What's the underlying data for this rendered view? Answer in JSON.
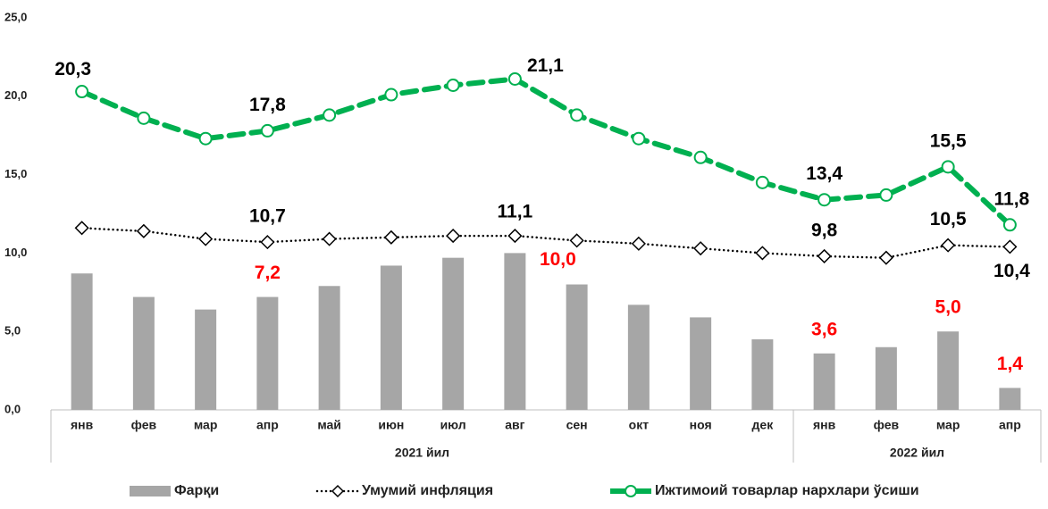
{
  "chart_data": {
    "type": "bar-line",
    "categories": [
      "янв",
      "фев",
      "мар",
      "апр",
      "май",
      "июн",
      "июл",
      "авг",
      "сен",
      "окт",
      "ноя",
      "дек",
      "янв",
      "фев",
      "мар",
      "апр"
    ],
    "groups": [
      {
        "label": "2021 йил",
        "span": 12
      },
      {
        "label": "2022 йил",
        "span": 4
      }
    ],
    "ylim": [
      0,
      25
    ],
    "yticks": [
      {
        "value": 0,
        "label": "0,0"
      },
      {
        "value": 5,
        "label": "5,0"
      },
      {
        "value": 10,
        "label": "10,0"
      },
      {
        "value": 15,
        "label": "15,0"
      },
      {
        "value": 20,
        "label": "20,0"
      },
      {
        "value": 25,
        "label": "25,0"
      }
    ],
    "grid": false,
    "legend": "bottom",
    "series": [
      {
        "name": "Фарқи",
        "kind": "bar",
        "color": "#a6a6a6",
        "label_color": "#ff0000",
        "values": [
          8.7,
          7.2,
          6.4,
          7.2,
          7.9,
          9.2,
          9.7,
          10.0,
          8.0,
          6.7,
          5.9,
          4.5,
          3.6,
          4.0,
          5.0,
          1.4
        ],
        "value_labels": [
          null,
          null,
          null,
          "7,2",
          null,
          null,
          null,
          "10,0",
          null,
          null,
          null,
          null,
          "3,6",
          null,
          "5,0",
          "1,4"
        ]
      },
      {
        "name": "Умумий инфляция",
        "kind": "dotted-diamond",
        "color": "#000000",
        "label_color": "#000000",
        "values": [
          11.6,
          11.4,
          10.9,
          10.7,
          10.9,
          11.0,
          11.1,
          11.1,
          10.8,
          10.6,
          10.3,
          10.0,
          9.8,
          9.7,
          10.5,
          10.4
        ],
        "value_labels": [
          null,
          null,
          null,
          "10,7",
          null,
          null,
          null,
          "11,1",
          null,
          null,
          null,
          null,
          "9,8",
          null,
          "10,5",
          "10,4"
        ]
      },
      {
        "name": "Ижтимоий товарлар нархлари ўсиши",
        "kind": "dashed-circle",
        "color": "#00b050",
        "label_color": "#000000",
        "values": [
          20.3,
          18.6,
          17.3,
          17.8,
          18.8,
          20.1,
          20.7,
          21.1,
          18.8,
          17.3,
          16.1,
          14.5,
          13.4,
          13.7,
          15.5,
          11.8
        ],
        "value_labels": [
          "20,3",
          null,
          null,
          "17,8",
          null,
          null,
          null,
          "21,1",
          null,
          null,
          null,
          null,
          "13,4",
          null,
          "15,5",
          "11,8"
        ]
      }
    ]
  }
}
